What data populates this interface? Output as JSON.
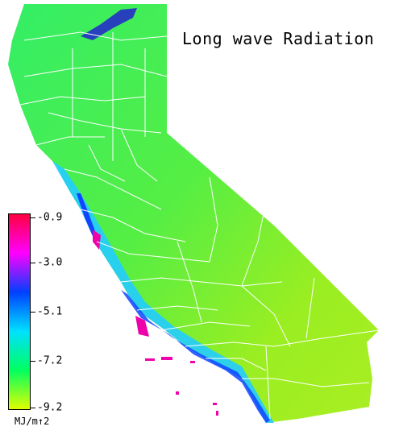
{
  "title": "Long wave Radiation",
  "legend": {
    "unit": "MJ/m↑2",
    "labels": [
      "-0.9",
      "-3.0",
      "-5.1",
      "-7.2",
      "-9.2"
    ],
    "colors": [
      "#ff0040",
      "#ff00ff",
      "#0040ff",
      "#00e0ff",
      "#00ff60",
      "#e0ff00"
    ]
  },
  "colors": {
    "state_fill_north": "#44ee55",
    "state_fill_mid": "#66ee44",
    "state_fill_south": "#aaee22",
    "coast_cyan": "#22ccff",
    "coast_blue": "#1144ff",
    "coast_magenta": "#ee00aa",
    "county_lines": "#ffffff"
  }
}
